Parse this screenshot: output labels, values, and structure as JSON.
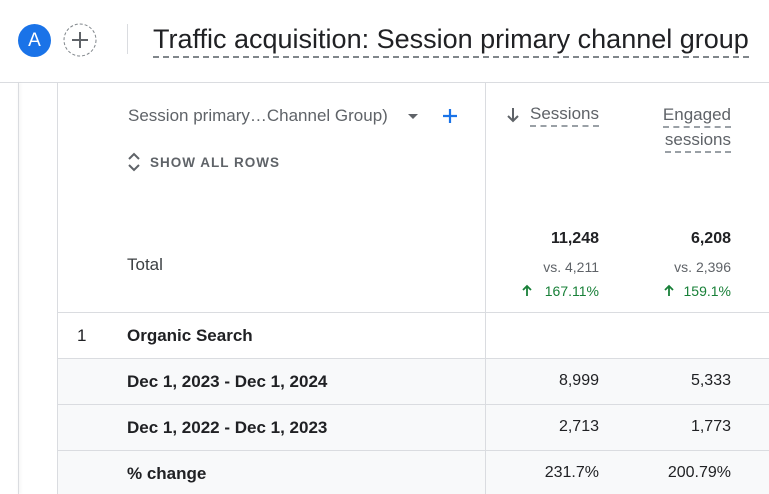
{
  "header": {
    "avatar": "A",
    "title": "Traffic acquisition: Session primary channel group"
  },
  "table": {
    "dimension": "Session primary…Channel Group)",
    "show_all_rows": "SHOW ALL ROWS",
    "columns": [
      [
        "Sessions"
      ],
      [
        "Engaged",
        "sessions"
      ]
    ],
    "total": {
      "label": "Total",
      "values": [
        "11,248",
        "6,208"
      ],
      "compare": [
        "vs. 4,211",
        "vs. 2,396"
      ],
      "change": [
        "167.11%",
        "159.1%"
      ]
    },
    "rows": [
      {
        "index": "1",
        "label": "Organic Search",
        "subrows": [
          {
            "label": "Dec 1, 2023 - Dec 1, 2024",
            "values": [
              "8,999",
              "5,333"
            ]
          },
          {
            "label": "Dec 1, 2022 - Dec 1, 2023",
            "values": [
              "2,713",
              "1,773"
            ]
          },
          {
            "label": "% change",
            "values": [
              "231.7%",
              "200.79%"
            ]
          }
        ]
      }
    ]
  }
}
